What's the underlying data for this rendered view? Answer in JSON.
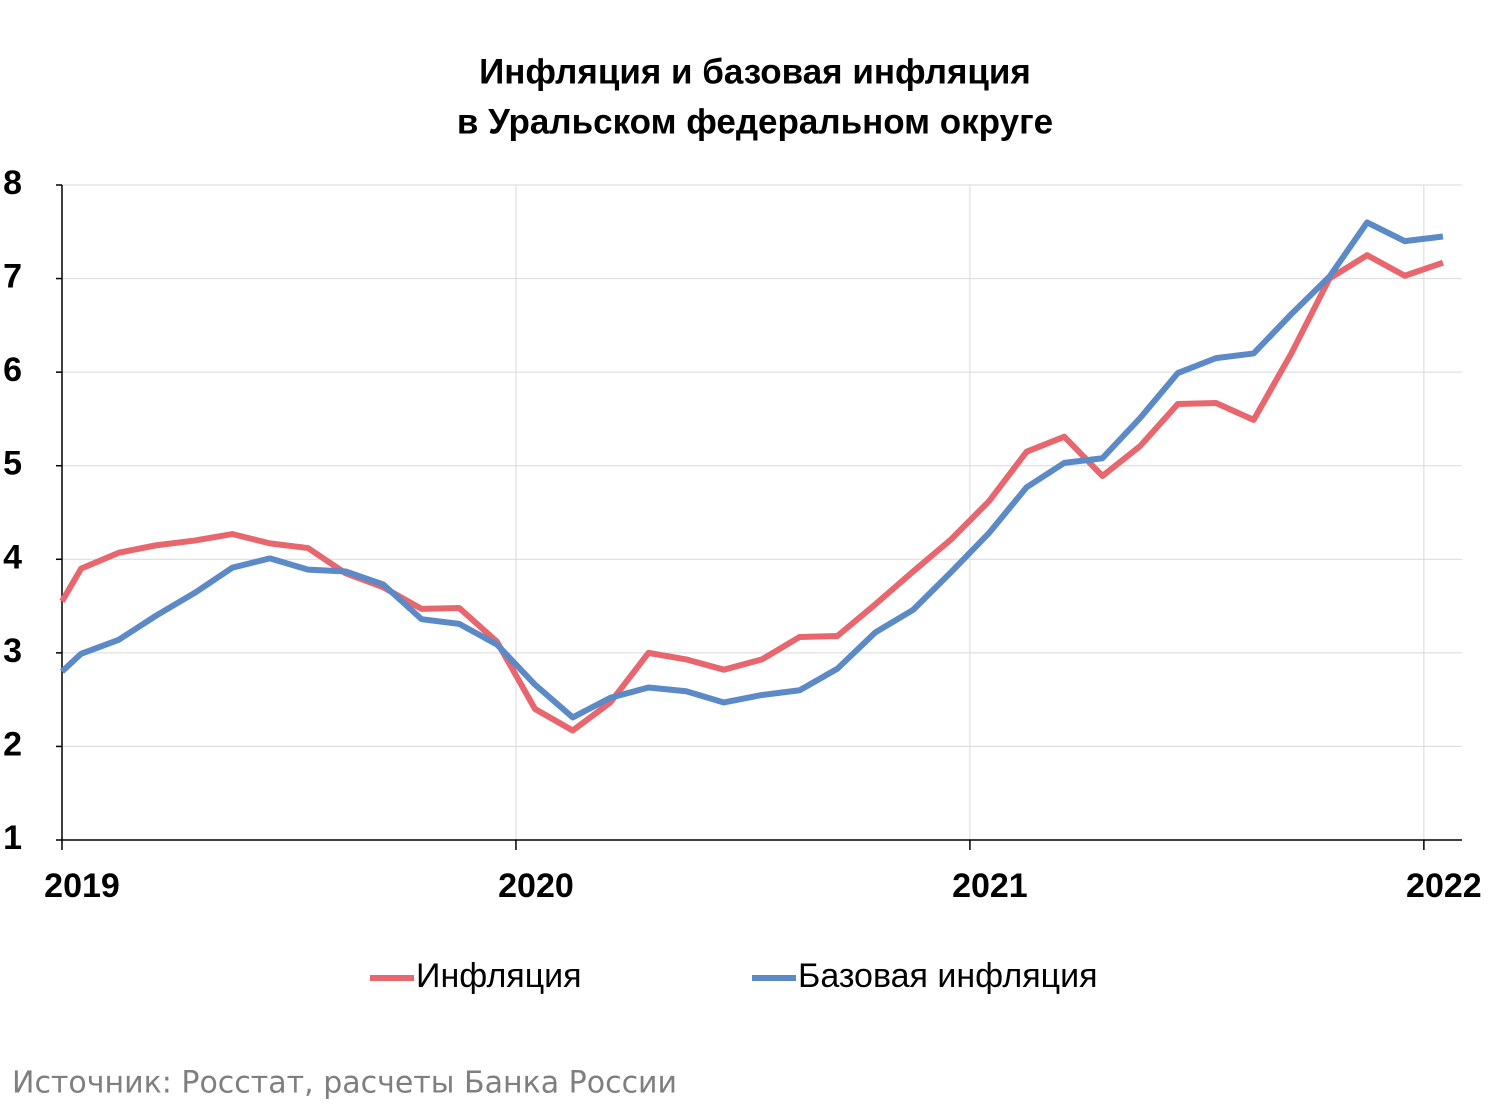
{
  "chart_data": {
    "type": "line",
    "title": [
      "Инфляция и базовая инфляция",
      "в  Уральском федеральном округе"
    ],
    "source": "Источник: Росстат, расчеты Банка России",
    "x": [
      2019,
      2019.042,
      2019.125,
      2019.208,
      2019.292,
      2019.375,
      2019.458,
      2019.542,
      2019.625,
      2019.708,
      2019.792,
      2019.875,
      2019.958,
      2020.042,
      2020.125,
      2020.208,
      2020.292,
      2020.375,
      2020.458,
      2020.542,
      2020.625,
      2020.708,
      2020.792,
      2020.875,
      2020.958,
      2021.042,
      2021.125,
      2021.208,
      2021.292,
      2021.375,
      2021.458,
      2021.542,
      2021.625,
      2021.708,
      2021.792,
      2021.875,
      2021.958,
      2022.042
    ],
    "series": [
      {
        "name": "Инфляция",
        "color": "#e8666d",
        "values": [
          3.55,
          3.9,
          4.07,
          4.15,
          4.2,
          4.27,
          4.17,
          4.12,
          3.85,
          3.7,
          3.47,
          3.48,
          3.12,
          2.4,
          2.17,
          2.47,
          3.0,
          2.93,
          2.82,
          2.93,
          3.17,
          3.18,
          3.52,
          3.87,
          4.21,
          4.62,
          5.15,
          5.31,
          4.89,
          5.21,
          5.66,
          5.67,
          5.49,
          6.2,
          7.0,
          7.25,
          7.03,
          7.17
        ]
      },
      {
        "name": "Базовая инфляция",
        "color": "#5b8ac6",
        "values": [
          2.8,
          2.99,
          3.14,
          3.4,
          3.64,
          3.91,
          4.01,
          3.89,
          3.87,
          3.73,
          3.36,
          3.31,
          3.09,
          2.66,
          2.31,
          2.52,
          2.63,
          2.59,
          2.47,
          2.55,
          2.6,
          2.83,
          3.22,
          3.46,
          3.86,
          4.28,
          4.77,
          5.03,
          5.08,
          5.51,
          5.99,
          6.15,
          6.2,
          6.62,
          7.02,
          7.6,
          7.4,
          7.45
        ]
      }
    ],
    "xlim": [
      2019,
      2022.084
    ],
    "xticks": [
      2019,
      2020,
      2021,
      2022
    ],
    "ylim": [
      1,
      8
    ],
    "yticks": [
      1,
      2,
      3,
      4,
      5,
      6,
      7,
      8
    ],
    "grid": true
  }
}
